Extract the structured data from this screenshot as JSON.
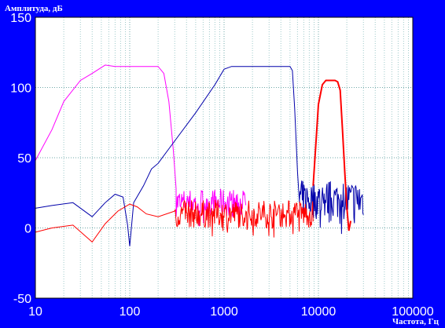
{
  "chart_data": {
    "type": "line",
    "x_scale": "log",
    "xlim": [
      10,
      100000
    ],
    "ylim": [
      -50,
      150
    ],
    "xlabel": "Частота, Гц",
    "ylabel": "Амплитуда, дБ",
    "grid": true,
    "legend": "none",
    "x_ticks": [
      {
        "value": 10,
        "label": "10"
      },
      {
        "value": 100,
        "label": "100"
      },
      {
        "value": 1000,
        "label": "1000"
      },
      {
        "value": 10000,
        "label": "10000"
      },
      {
        "value": 100000,
        "label": "100000"
      }
    ],
    "y_ticks": [
      {
        "value": 150,
        "label": "150"
      },
      {
        "value": 100,
        "label": "100"
      },
      {
        "value": 50,
        "label": "50"
      },
      {
        "value": 0,
        "label": "0"
      },
      {
        "value": -50,
        "label": "-50"
      }
    ],
    "series": [
      {
        "color": "#ff00ff",
        "points": [
          [
            10,
            48
          ],
          [
            15,
            70
          ],
          [
            20,
            90
          ],
          [
            30,
            105
          ],
          [
            40,
            110
          ],
          [
            55,
            116
          ],
          [
            70,
            115
          ],
          [
            100,
            115
          ],
          [
            150,
            115
          ],
          [
            200,
            115
          ],
          [
            230,
            110
          ],
          [
            260,
            90
          ],
          [
            290,
            55
          ],
          [
            310,
            28
          ]
        ],
        "noise": {
          "from": 310,
          "to": 1700,
          "center": 18,
          "amplitude": 10
        }
      },
      {
        "color": "#0000aa",
        "points": [
          [
            10,
            14
          ],
          [
            15,
            16
          ],
          [
            25,
            18
          ],
          [
            40,
            8
          ],
          [
            55,
            18
          ],
          [
            70,
            24
          ],
          [
            85,
            22
          ],
          [
            95,
            2
          ],
          [
            100,
            -13
          ],
          [
            110,
            18
          ],
          [
            140,
            30
          ],
          [
            170,
            42
          ],
          [
            200,
            46
          ],
          [
            300,
            62
          ],
          [
            500,
            82
          ],
          [
            800,
            102
          ],
          [
            1000,
            113
          ],
          [
            1200,
            115
          ],
          [
            2000,
            115
          ],
          [
            3000,
            115
          ],
          [
            5000,
            115
          ],
          [
            5300,
            112
          ],
          [
            5600,
            85
          ],
          [
            6000,
            40
          ],
          [
            6300,
            18
          ]
        ],
        "noise": {
          "from": 6300,
          "to": 30000,
          "center": 20,
          "amplitude": 14
        }
      },
      {
        "color": "#ff0000",
        "points": [
          [
            10,
            -3
          ],
          [
            15,
            0
          ],
          [
            25,
            2
          ],
          [
            40,
            -10
          ],
          [
            55,
            3
          ],
          [
            75,
            12
          ],
          [
            100,
            17
          ],
          [
            120,
            15
          ],
          [
            150,
            10
          ],
          [
            200,
            8
          ],
          [
            300,
            12
          ]
        ],
        "noise": {
          "from": 300,
          "to": 8800,
          "center": 10,
          "amplitude": 10
        },
        "peak": [
          [
            8800,
            30
          ],
          [
            9300,
            55
          ],
          [
            10000,
            88
          ],
          [
            11000,
            102
          ],
          [
            12000,
            105
          ],
          [
            15000,
            105
          ],
          [
            16000,
            104
          ],
          [
            17000,
            98
          ],
          [
            18000,
            70
          ],
          [
            19000,
            40
          ],
          [
            20000,
            15
          ],
          [
            21000,
            -2
          ],
          [
            22000,
            5
          ]
        ]
      }
    ]
  }
}
